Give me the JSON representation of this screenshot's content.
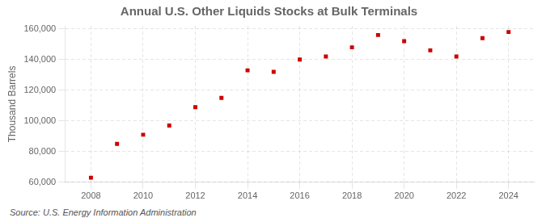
{
  "chart_data": {
    "type": "scatter",
    "title": "Annual U.S. Other Liquids Stocks at Bulk Terminals",
    "ylabel": "Thousand Barrels",
    "source": "Source: U.S. Energy Information Administration",
    "x": [
      2008,
      2009,
      2010,
      2011,
      2012,
      2013,
      2014,
      2015,
      2016,
      2017,
      2018,
      2019,
      2020,
      2021,
      2022,
      2023,
      2024
    ],
    "values": [
      63000,
      85000,
      91000,
      97000,
      109000,
      115000,
      133000,
      132000,
      140000,
      142000,
      148000,
      156000,
      152000,
      146000,
      142000,
      154000,
      158000
    ],
    "color": "#cc0000",
    "marker": "square",
    "xlim": [
      2007,
      2025
    ],
    "xticks": [
      2008,
      2010,
      2012,
      2014,
      2016,
      2018,
      2020,
      2022,
      2024
    ],
    "ylim": [
      60000,
      162000
    ],
    "yticks": [
      {
        "value": 60000,
        "label": "60,000"
      },
      {
        "value": 80000,
        "label": "80,000"
      },
      {
        "value": 100000,
        "label": "100,000"
      },
      {
        "value": 120000,
        "label": "120,000"
      },
      {
        "value": 140000,
        "label": "140,000"
      },
      {
        "value": 160000,
        "label": "160,000"
      }
    ],
    "grid": true
  }
}
